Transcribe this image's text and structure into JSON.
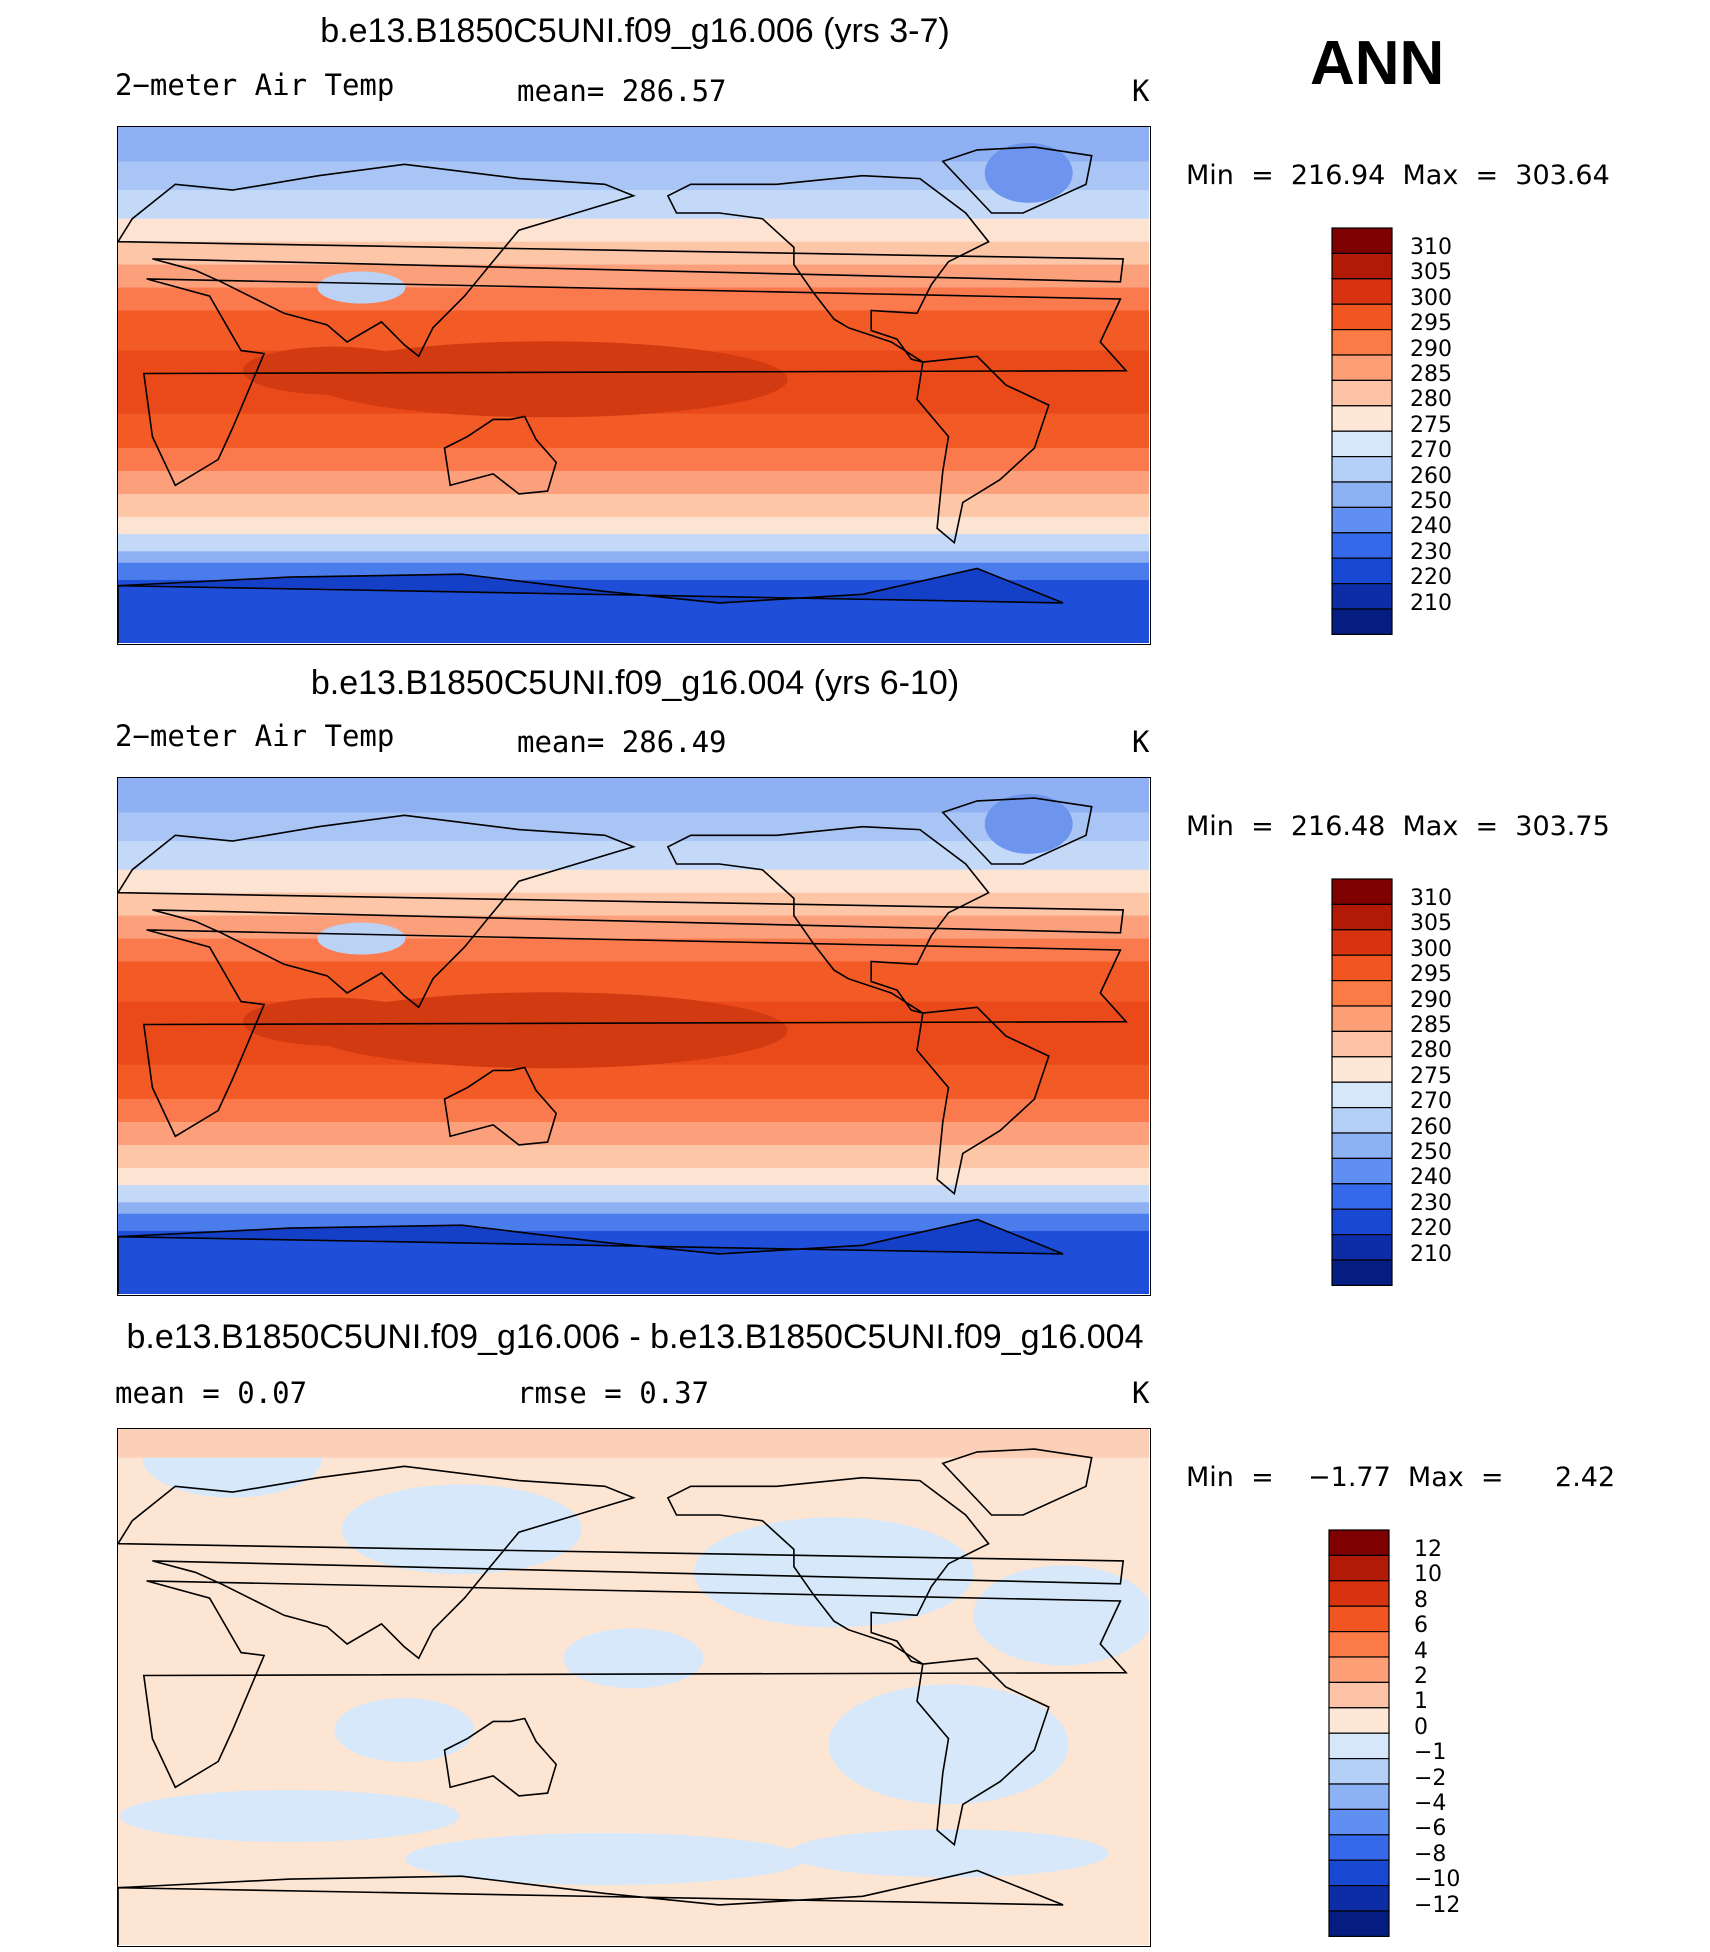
{
  "season": "ANN",
  "panels": [
    {
      "title": "b.e13.B1850C5UNI.f09_g16.006 (yrs 3-7)",
      "left_label": "2−meter Air Temp",
      "center_label": "mean=  286.57",
      "units": "K",
      "minmax": "Min  =  216.94  Max  =  303.64",
      "kind": "abs",
      "colorbar_labels": [
        "310",
        "305",
        "300",
        "295",
        "290",
        "285",
        "280",
        "275",
        "270",
        "260",
        "250",
        "240",
        "230",
        "220",
        "210"
      ]
    },
    {
      "title": "b.e13.B1850C5UNI.f09_g16.004 (yrs 6-10)",
      "left_label": "2−meter Air Temp",
      "center_label": "mean=  286.49",
      "units": "K",
      "minmax": "Min  =  216.48  Max  =  303.75",
      "kind": "abs",
      "colorbar_labels": [
        "310",
        "305",
        "300",
        "295",
        "290",
        "285",
        "280",
        "275",
        "270",
        "260",
        "250",
        "240",
        "230",
        "220",
        "210"
      ]
    },
    {
      "title": "b.e13.B1850C5UNI.f09_g16.006 - b.e13.B1850C5UNI.f09_g16.004",
      "left_label": "mean  =      0.07",
      "center_label": "rmse  =      0.37",
      "units": "K",
      "minmax": "Min  =    −1.77  Max  =      2.42",
      "kind": "diff",
      "colorbar_labels": [
        "12",
        "10",
        "8",
        "6",
        "4",
        "2",
        "1",
        "0",
        "−1",
        "−2",
        "−4",
        "−6",
        "−8",
        "−10",
        "−12"
      ]
    }
  ],
  "colors": {
    "abs_scale": [
      "#fddcc6",
      "#fcbba1",
      "#fc9272",
      "#fb6a4a",
      "#ef3b2c",
      "#e8481e",
      "#d93d14",
      "#c2290c",
      "#a51a0a",
      "#7f0000"
    ],
    "cool_scale": [
      "#d4e8fb",
      "#b6d4f8",
      "#8fb8f4",
      "#6a9cf0",
      "#4479ec",
      "#2356e0",
      "#1440c8",
      "#0c2fa8",
      "#061e82"
    ],
    "diff_pos": "#fde5d3",
    "diff_neg": "#d6e8fa"
  }
}
